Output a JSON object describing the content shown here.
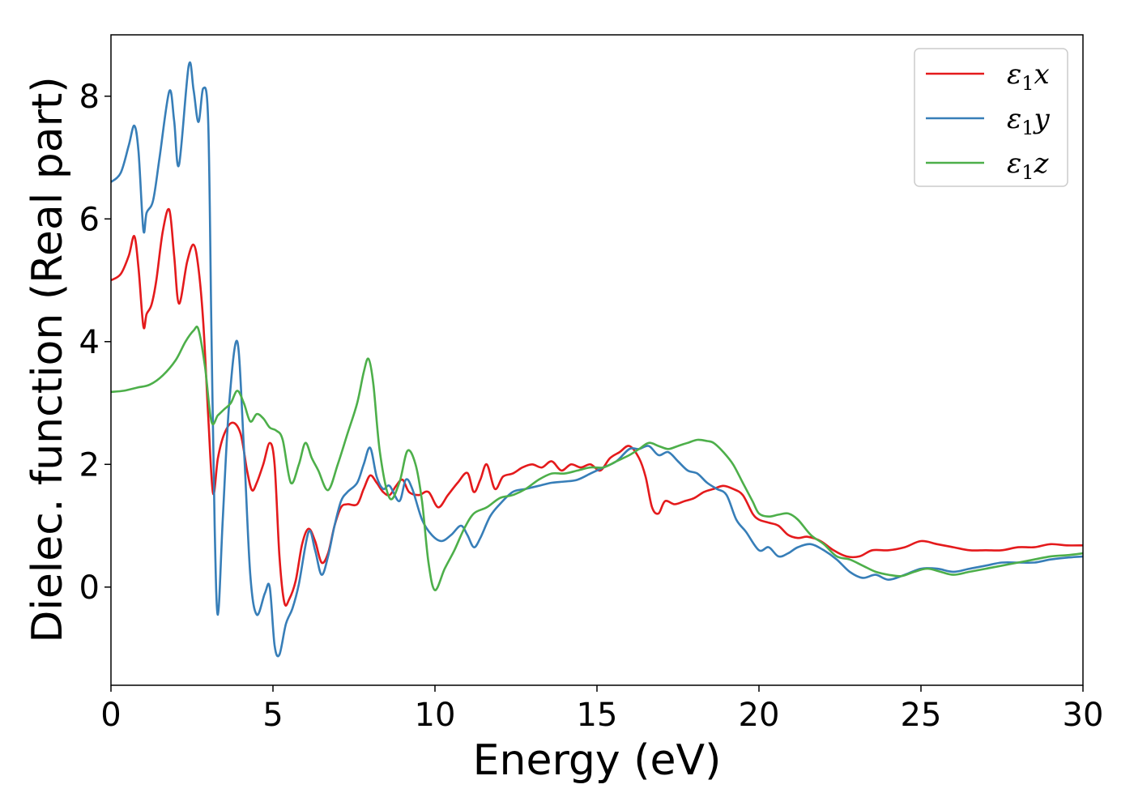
{
  "chart_data": {
    "type": "line",
    "title": "",
    "xlabel": "Energy (eV)",
    "ylabel": "Dielec. function (Real part)",
    "xlim": [
      0,
      30
    ],
    "ylim": [
      -1.6,
      9.0
    ],
    "xticks": [
      0,
      5,
      10,
      15,
      20,
      25,
      30
    ],
    "yticks": [
      0,
      2,
      4,
      6,
      8
    ],
    "grid": false,
    "legend_position": "top-right",
    "series": [
      {
        "name": "ε1x",
        "legend": {
          "base": "ε",
          "sub": "1",
          "var": "x"
        },
        "color": "#e41a1c",
        "x": [
          0,
          0.3,
          0.55,
          0.72,
          0.85,
          1.0,
          1.1,
          1.25,
          1.4,
          1.6,
          1.8,
          1.95,
          2.1,
          2.35,
          2.55,
          2.7,
          2.85,
          3.0,
          3.15,
          3.3,
          3.5,
          3.75,
          4.0,
          4.2,
          4.35,
          4.5,
          4.7,
          4.9,
          5.05,
          5.2,
          5.35,
          5.5,
          5.7,
          5.9,
          6.1,
          6.3,
          6.5,
          6.7,
          6.9,
          7.1,
          7.3,
          7.6,
          7.8,
          8.0,
          8.2,
          8.4,
          8.6,
          8.8,
          9.0,
          9.2,
          9.5,
          9.8,
          10.1,
          10.4,
          10.7,
          11.0,
          11.2,
          11.4,
          11.6,
          11.85,
          12.1,
          12.4,
          12.7,
          13.0,
          13.3,
          13.6,
          13.9,
          14.2,
          14.5,
          14.8,
          15.1,
          15.4,
          15.7,
          16.0,
          16.3,
          16.5,
          16.7,
          16.9,
          17.1,
          17.4,
          17.7,
          18.0,
          18.3,
          18.6,
          18.9,
          19.2,
          19.5,
          19.8,
          20.0,
          20.3,
          20.6,
          20.9,
          21.2,
          21.5,
          21.9,
          22.3,
          22.7,
          23.1,
          23.5,
          24.0,
          24.5,
          25.0,
          25.5,
          26.0,
          26.5,
          27.0,
          27.5,
          28.0,
          28.5,
          29.0,
          29.5,
          30.0
        ],
        "y": [
          5.0,
          5.1,
          5.4,
          5.72,
          5.2,
          4.25,
          4.45,
          4.6,
          5.0,
          5.8,
          6.15,
          5.4,
          4.62,
          5.3,
          5.58,
          5.2,
          4.3,
          2.8,
          1.53,
          2.1,
          2.5,
          2.68,
          2.5,
          1.9,
          1.58,
          1.7,
          2.0,
          2.35,
          2.0,
          0.5,
          -0.25,
          -0.2,
          0.1,
          0.7,
          0.95,
          0.75,
          0.4,
          0.55,
          1.0,
          1.3,
          1.35,
          1.35,
          1.6,
          1.82,
          1.7,
          1.55,
          1.5,
          1.65,
          1.75,
          1.55,
          1.5,
          1.55,
          1.3,
          1.5,
          1.7,
          1.86,
          1.55,
          1.75,
          2.0,
          1.6,
          1.8,
          1.85,
          1.95,
          2.0,
          1.95,
          2.05,
          1.9,
          2.0,
          1.95,
          2.0,
          1.9,
          2.1,
          2.2,
          2.3,
          2.1,
          1.8,
          1.3,
          1.2,
          1.4,
          1.35,
          1.4,
          1.45,
          1.55,
          1.6,
          1.65,
          1.6,
          1.5,
          1.2,
          1.1,
          1.05,
          1.0,
          0.85,
          0.8,
          0.82,
          0.75,
          0.6,
          0.5,
          0.5,
          0.6,
          0.6,
          0.65,
          0.75,
          0.7,
          0.65,
          0.6,
          0.6,
          0.6,
          0.65,
          0.65,
          0.7,
          0.68,
          0.68
        ]
      },
      {
        "name": "ε1y",
        "legend": {
          "base": "ε",
          "sub": "1",
          "var": "y"
        },
        "color": "#377eb8",
        "x": [
          0,
          0.3,
          0.55,
          0.72,
          0.85,
          1.0,
          1.1,
          1.3,
          1.5,
          1.8,
          1.95,
          2.1,
          2.4,
          2.55,
          2.7,
          2.85,
          3.0,
          3.1,
          3.2,
          3.3,
          3.45,
          3.65,
          3.9,
          4.1,
          4.3,
          4.5,
          4.75,
          4.9,
          5.05,
          5.2,
          5.4,
          5.6,
          5.8,
          6.1,
          6.3,
          6.5,
          6.7,
          6.9,
          7.1,
          7.3,
          7.6,
          7.8,
          8.0,
          8.2,
          8.4,
          8.6,
          8.9,
          9.1,
          9.3,
          9.6,
          9.9,
          10.2,
          10.5,
          10.8,
          11.0,
          11.2,
          11.4,
          11.7,
          12.0,
          12.4,
          12.8,
          13.2,
          13.6,
          14.0,
          14.4,
          14.8,
          15.2,
          15.6,
          16.0,
          16.3,
          16.6,
          16.9,
          17.2,
          17.5,
          17.8,
          18.1,
          18.4,
          18.7,
          19.0,
          19.3,
          19.6,
          20.0,
          20.3,
          20.6,
          20.9,
          21.2,
          21.6,
          22.0,
          22.4,
          22.8,
          23.2,
          23.6,
          24.0,
          24.5,
          25.0,
          25.5,
          26.0,
          26.5,
          27.0,
          27.5,
          28.0,
          28.5,
          29.0,
          29.5,
          30.0
        ],
        "y": [
          6.6,
          6.75,
          7.2,
          7.52,
          7.1,
          5.82,
          6.1,
          6.3,
          7.0,
          8.08,
          7.6,
          6.88,
          8.5,
          8.1,
          7.58,
          8.13,
          7.6,
          4.2,
          1.0,
          -0.45,
          1.1,
          3.0,
          4.0,
          2.3,
          0.2,
          -0.45,
          -0.1,
          0.0,
          -0.95,
          -1.1,
          -0.6,
          -0.35,
          0.05,
          0.9,
          0.6,
          0.2,
          0.5,
          1.0,
          1.4,
          1.55,
          1.7,
          2.0,
          2.27,
          1.8,
          1.6,
          1.65,
          1.4,
          1.75,
          1.6,
          1.1,
          0.85,
          0.75,
          0.85,
          1.0,
          0.85,
          0.65,
          0.8,
          1.15,
          1.35,
          1.55,
          1.6,
          1.65,
          1.7,
          1.72,
          1.75,
          1.85,
          1.95,
          2.05,
          2.25,
          2.25,
          2.3,
          2.15,
          2.2,
          2.05,
          1.9,
          1.85,
          1.7,
          1.6,
          1.5,
          1.1,
          0.9,
          0.6,
          0.65,
          0.5,
          0.55,
          0.65,
          0.7,
          0.6,
          0.45,
          0.25,
          0.15,
          0.2,
          0.12,
          0.2,
          0.3,
          0.3,
          0.25,
          0.3,
          0.35,
          0.4,
          0.4,
          0.4,
          0.45,
          0.48,
          0.5
        ]
      },
      {
        "name": "ε1z",
        "legend": {
          "base": "ε",
          "sub": "1",
          "var": "z"
        },
        "color": "#4daf4a",
        "x": [
          0,
          0.4,
          0.8,
          1.2,
          1.6,
          2.0,
          2.3,
          2.55,
          2.7,
          2.9,
          3.1,
          3.3,
          3.5,
          3.7,
          3.9,
          4.1,
          4.3,
          4.5,
          4.7,
          4.9,
          5.1,
          5.3,
          5.55,
          5.8,
          6.0,
          6.2,
          6.4,
          6.7,
          7.0,
          7.3,
          7.6,
          7.8,
          7.95,
          8.1,
          8.3,
          8.6,
          8.9,
          9.15,
          9.4,
          9.6,
          9.8,
          10.0,
          10.3,
          10.6,
          10.9,
          11.2,
          11.6,
          12.0,
          12.4,
          12.8,
          13.2,
          13.6,
          14.0,
          14.4,
          14.8,
          15.2,
          15.6,
          16.0,
          16.3,
          16.6,
          16.9,
          17.2,
          17.5,
          17.8,
          18.1,
          18.4,
          18.6,
          18.9,
          19.2,
          19.5,
          19.8,
          20.0,
          20.3,
          20.6,
          20.9,
          21.2,
          21.6,
          22.0,
          22.4,
          22.8,
          23.2,
          23.6,
          24.0,
          24.4,
          24.8,
          25.2,
          25.6,
          26.0,
          26.5,
          27.0,
          27.5,
          28.0,
          28.5,
          29.0,
          29.5,
          30.0
        ],
        "y": [
          3.18,
          3.2,
          3.25,
          3.3,
          3.45,
          3.7,
          4.0,
          4.18,
          4.2,
          3.6,
          2.7,
          2.8,
          2.9,
          3.0,
          3.2,
          3.0,
          2.7,
          2.82,
          2.75,
          2.6,
          2.55,
          2.4,
          1.7,
          2.0,
          2.35,
          2.1,
          1.9,
          1.58,
          2.0,
          2.5,
          3.0,
          3.5,
          3.72,
          3.3,
          2.2,
          1.45,
          1.7,
          2.22,
          2.0,
          1.4,
          0.4,
          -0.05,
          0.3,
          0.6,
          0.95,
          1.2,
          1.3,
          1.45,
          1.5,
          1.6,
          1.75,
          1.85,
          1.85,
          1.9,
          1.95,
          1.95,
          2.05,
          2.15,
          2.25,
          2.35,
          2.3,
          2.25,
          2.3,
          2.35,
          2.4,
          2.38,
          2.35,
          2.2,
          2.0,
          1.7,
          1.4,
          1.2,
          1.15,
          1.18,
          1.2,
          1.1,
          0.85,
          0.7,
          0.5,
          0.45,
          0.35,
          0.25,
          0.2,
          0.18,
          0.25,
          0.3,
          0.25,
          0.2,
          0.25,
          0.3,
          0.35,
          0.4,
          0.45,
          0.5,
          0.52,
          0.55
        ]
      }
    ]
  }
}
